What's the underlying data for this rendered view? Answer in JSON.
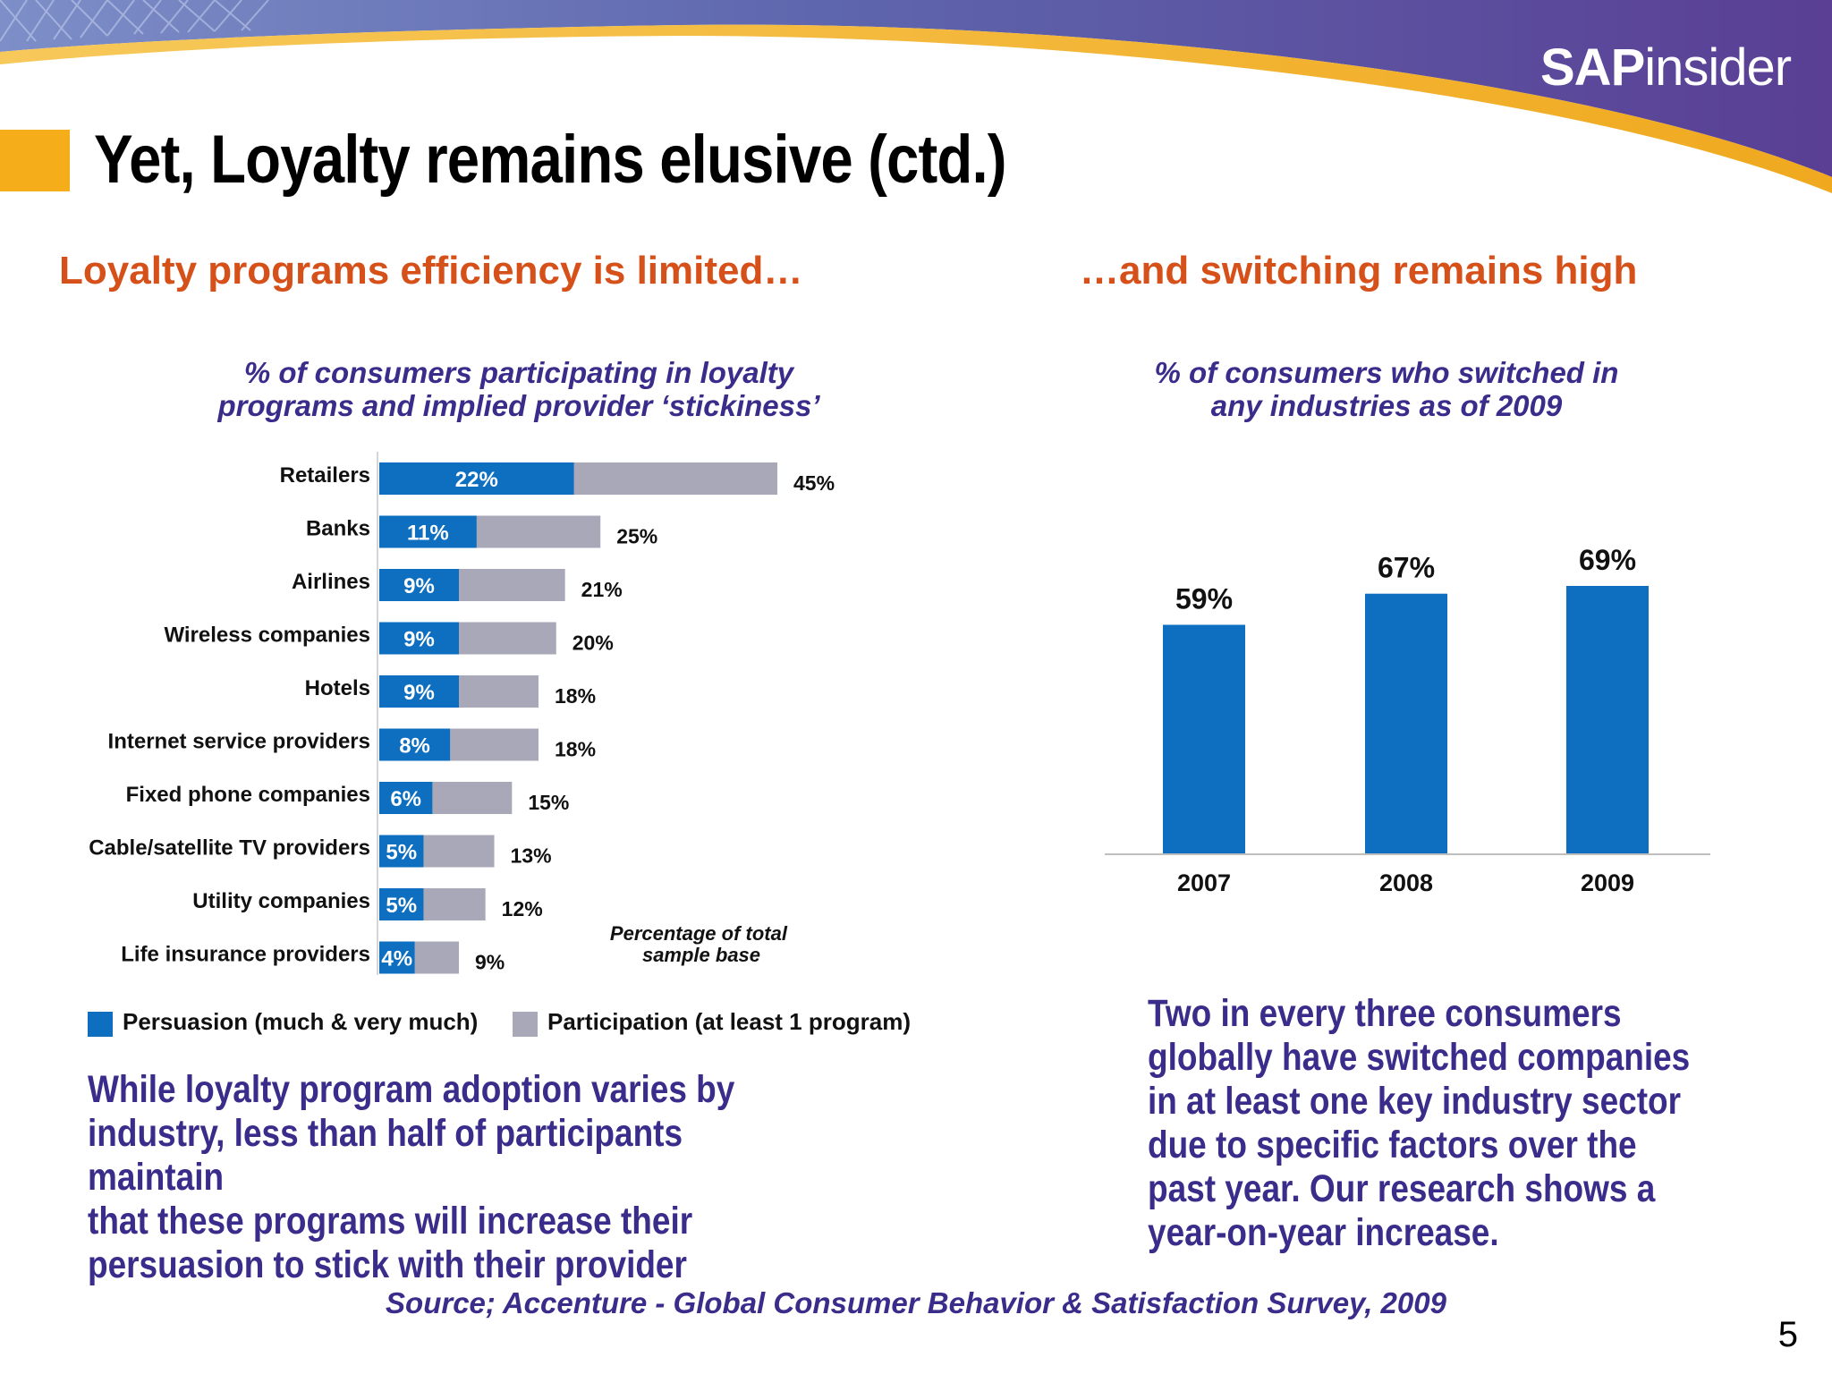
{
  "header": {
    "logo_bold": "SAP",
    "logo_light": "insider",
    "title": "Yet, Loyalty remains elusive (ctd.)"
  },
  "left": {
    "heading": "Loyalty programs efficiency is limited…",
    "chart_title": "% of consumers participating in loyalty\nprograms and implied provider ‘stickiness’",
    "legend": {
      "persuasion": "Persuasion (much & very much)",
      "participation": "Participation (at least 1 program)"
    },
    "body": "While loyalty program adoption varies by\nindustry, less than half of participants maintain\nthat these programs will increase their\npersuasion to stick with their provider"
  },
  "right": {
    "heading": "…and switching remains high",
    "chart_title": "% of consumers who switched in\nany industries as of 2009",
    "body": "Two in every three consumers\nglobally have switched companies\nin at least one key industry sector\ndue to specific factors over the\npast year. Our research shows a\nyear-on-year increase."
  },
  "footer": {
    "source": "Source; Accenture - Global Consumer Behavior & Satisfaction Survey, 2009",
    "page_number": "5"
  },
  "colors": {
    "blue": "#0e6fc1",
    "gray": "#a9a8b9",
    "orange": "#d6501a",
    "purple": "#3a2c8a",
    "marker": "#f5ad1a"
  },
  "chart_data": [
    {
      "type": "bar",
      "orientation": "horizontal",
      "categories": [
        "Retailers",
        "Banks",
        "Airlines",
        "Wireless companies",
        "Hotels",
        "Internet service providers",
        "Fixed phone companies",
        "Cable/satellite TV providers",
        "Utility companies",
        "Life insurance providers"
      ],
      "series": [
        {
          "name": "Persuasion (much & very much)",
          "values": [
            22,
            11,
            9,
            9,
            9,
            8,
            6,
            5,
            5,
            4
          ],
          "labels": [
            "22%",
            "11%",
            "9%",
            "9%",
            "9%",
            "8%",
            "6%",
            "5%",
            "5%",
            "4%"
          ],
          "color": "#0e6fc1"
        },
        {
          "name": "Participation (at least 1 program)",
          "values": [
            45,
            25,
            21,
            20,
            18,
            18,
            15,
            13,
            12,
            9
          ],
          "labels": [
            "45%",
            "25%",
            "21%",
            "20%",
            "18%",
            "18%",
            "15%",
            "13%",
            "12%",
            "9%"
          ],
          "color": "#a9a8b9"
        }
      ],
      "annotation": "Percentage of total\nsample base",
      "xlim": [
        0,
        45
      ],
      "grid": false
    },
    {
      "type": "bar",
      "categories": [
        "2007",
        "2008",
        "2009"
      ],
      "values": [
        59,
        67,
        69
      ],
      "labels": [
        "59%",
        "67%",
        "69%"
      ],
      "color": "#0e6fc1",
      "ylim": [
        0,
        69
      ],
      "grid": false
    }
  ]
}
